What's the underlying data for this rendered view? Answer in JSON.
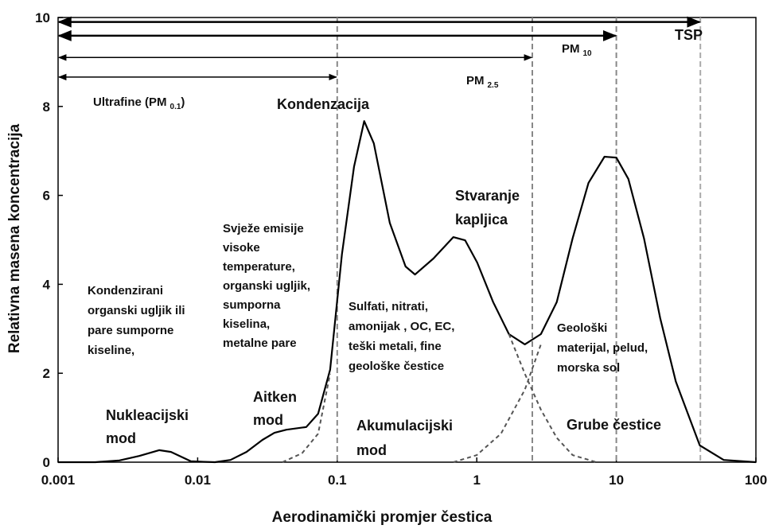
{
  "chart_data": {
    "type": "line",
    "xlabel": "Aerodinamički promjer čestica",
    "ylabel": "Relativna masena koncentracija",
    "xscale": "log",
    "xlim": [
      0.001,
      100
    ],
    "ylim": [
      0,
      10
    ],
    "xticks": [
      0.001,
      0.01,
      0.1,
      1,
      10,
      100
    ],
    "yticks": [
      0,
      2,
      4,
      6,
      8,
      10
    ],
    "series": [
      {
        "color": "#000000",
        "style": "solid",
        "x": [
          0.001,
          0.00185,
          0.00275,
          0.00381,
          0.0053,
          0.00644,
          0.00895,
          0.0133,
          0.0172,
          0.0224,
          0.0291,
          0.0355,
          0.0432,
          0.06,
          0.073,
          0.089,
          0.108,
          0.132,
          0.156,
          0.183,
          0.238,
          0.309,
          0.361,
          0.489,
          0.679,
          0.826,
          1.007,
          1.31,
          1.7,
          2.21,
          2.88,
          3.74,
          4.86,
          6.32,
          8.22,
          10,
          12.2,
          15.8,
          20.6,
          26.7,
          39.6,
          58.8,
          100
        ],
        "values": [
          0,
          0,
          0.04,
          0.14,
          0.27,
          0.23,
          0.02,
          0,
          0.05,
          0.23,
          0.5,
          0.66,
          0.73,
          0.79,
          1.09,
          2.08,
          4.67,
          6.64,
          7.67,
          7.17,
          5.38,
          4.4,
          4.22,
          4.58,
          5.06,
          4.99,
          4.49,
          3.6,
          2.88,
          2.65,
          2.88,
          3.6,
          5.03,
          6.28,
          6.87,
          6.85,
          6.37,
          5.03,
          3.24,
          1.81,
          0.38,
          0.05,
          0
        ]
      },
      {
        "color": "#555555",
        "style": "dashed",
        "x": [
          0.0405,
          0.056,
          0.073,
          0.089,
          null,
          1.7,
          2.21,
          2.88,
          3.74,
          4.86,
          7.2,
          null,
          0.68,
          1.0,
          1.49,
          2.21,
          2.88
        ],
        "values": [
          0,
          0.2,
          0.64,
          1.99,
          null,
          2.88,
          1.99,
          1.18,
          0.55,
          0.16,
          0,
          null,
          0,
          0.16,
          0.64,
          1.63,
          2.65
        ]
      }
    ],
    "vlines": [
      0.1,
      2.5,
      10,
      40
    ],
    "ranges": [
      {
        "from": 0.001,
        "to": 40,
        "y": 9.9
      },
      {
        "from": 0.001,
        "to": 10,
        "y": 9.59
      },
      {
        "from": 0.001,
        "to": 2.5,
        "y": 9.1
      },
      {
        "from": 0.001,
        "to": 0.1,
        "y": 8.66
      }
    ],
    "range_labels": [
      {
        "main": "TSP"
      },
      {
        "main": "PM",
        "sub": "10"
      },
      {
        "main": "PM",
        "sub": "2.5"
      },
      {
        "main": "Ultrafine (PM",
        "sub": "0.1",
        "end": ")"
      }
    ],
    "annotations": [
      [
        "Kondenzacija"
      ],
      [
        "Kondenzirani",
        "organski ugljik ili",
        "pare sumporne",
        "kiseline,"
      ],
      [
        "Svježe emisije",
        "visoke",
        "temperature,",
        "organski ugljik,",
        "sumporna",
        "kiselina,",
        "metalne pare"
      ],
      [
        "Sulfati, nitrati,",
        "amonijak , OC, EC,",
        "teški metali, fine",
        "geološke čestice"
      ],
      [
        "Geološki",
        "materijal, pelud,",
        "morska sol"
      ],
      [
        "Stvaranje",
        "kapljica"
      ],
      [
        "Nukleacijski",
        "mod"
      ],
      [
        "Aitken",
        "mod"
      ],
      [
        "Akumulacijski",
        "mod"
      ],
      [
        "Grube čestice"
      ]
    ]
  }
}
